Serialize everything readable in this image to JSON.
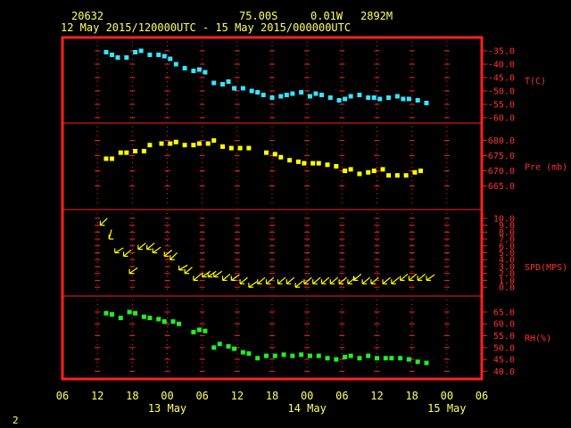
{
  "header": {
    "station_id": "20632",
    "latitude": "75.00S",
    "longitude": "0.01W",
    "altitude": "2892M",
    "time_range": "12 May 2015/120000UTC - 15 May 2015/000000UTC"
  },
  "footer": {
    "page_number": "2"
  },
  "colors": {
    "frame": "#ff2020",
    "grid": "#ff2020",
    "labels": "#ff3030",
    "header_text": "#ffff66",
    "temperature": "#33e6ff",
    "pressure": "#ffff00",
    "wind": "#ffff00",
    "humidity": "#22ee22"
  },
  "chart_data": {
    "type": "scatter",
    "x_unit": "hours since 06 UTC 12 May 2015",
    "x_ticks": [
      "06",
      "12",
      "18",
      "00",
      "06",
      "12",
      "18",
      "00",
      "06",
      "12",
      "18",
      "00",
      "06"
    ],
    "x_tick_hours": [
      0,
      6,
      12,
      18,
      24,
      30,
      36,
      42,
      48,
      54,
      60,
      66,
      72
    ],
    "date_labels": [
      {
        "label": "13 May",
        "hour": 18
      },
      {
        "label": "14 May",
        "hour": 42
      },
      {
        "label": "15 May",
        "hour": 66
      }
    ],
    "xlim": [
      0,
      72
    ],
    "panels": [
      {
        "name": "temperature",
        "axis_label": "T(C)",
        "ylim": [
          -60,
          -32
        ],
        "ticks": [
          -35.0,
          -40.0,
          -45.0,
          -50.0,
          -55.0,
          -60.0
        ],
        "tick_labels": [
          "-35.0",
          "-40.0",
          "-45.0",
          "-50.0",
          "-55.0",
          "-60.0"
        ],
        "series": [
          {
            "marker": "square",
            "x": [
              7.5,
              8.5,
              9.5,
              11,
              12.5,
              13.5,
              15,
              16.5,
              17.5,
              18.5,
              19.5,
              21,
              22.5,
              23.5,
              24.5,
              26,
              27.5,
              28.5,
              29.5,
              31,
              32.5,
              33.5,
              34.5,
              36,
              37.5,
              38.5,
              39.5,
              41,
              42.5,
              43.5,
              44.5,
              46,
              47.5,
              48.5,
              49.5,
              51,
              52.5,
              53.5,
              54.5,
              56,
              57.5,
              58.5,
              59.5,
              61,
              62.5
            ],
            "y": [
              -35.5,
              -36.5,
              -37.5,
              -37.5,
              -35.5,
              -35.0,
              -36.5,
              -36.5,
              -37.0,
              -38.0,
              -40.0,
              -41.5,
              -42.5,
              -42.0,
              -43.0,
              -47.0,
              -47.5,
              -46.5,
              -49.0,
              -49.0,
              -50.0,
              -50.5,
              -51.5,
              -52.5,
              -52.0,
              -51.5,
              -51.0,
              -50.5,
              -52.0,
              -51.0,
              -51.5,
              -52.5,
              -53.5,
              -53.0,
              -52.0,
              -51.5,
              -52.5,
              -52.5,
              -53.0,
              -52.5,
              -52.0,
              -53.0,
              -53.0,
              -53.5,
              -54.5
            ]
          }
        ]
      },
      {
        "name": "pressure",
        "axis_label": "Pre (mb)",
        "ylim": [
          659,
          684
        ],
        "ticks": [
          680.0,
          675.0,
          670.0,
          665.0
        ],
        "tick_labels": [
          "680.0",
          "675.0",
          "670.0",
          "665.0"
        ],
        "series": [
          {
            "marker": "square",
            "x": [
              7.5,
              8.5,
              10,
              11,
              12.5,
              14,
              15,
              17,
              18.5,
              19.5,
              21,
              22.5,
              23.5,
              25,
              26,
              27.5,
              29,
              30.5,
              32,
              35,
              36.5,
              37.5,
              39,
              40.5,
              41.5,
              43,
              44,
              45.5,
              47,
              48.5,
              49.5,
              51,
              52.5,
              53.5,
              55,
              56,
              57.5,
              59,
              60.5,
              61.5
            ],
            "y": [
              674.0,
              674.0,
              676.0,
              676.0,
              676.5,
              676.5,
              678.5,
              679.0,
              679.0,
              679.5,
              678.5,
              678.5,
              679.0,
              679.0,
              680.0,
              678.0,
              677.5,
              677.5,
              677.5,
              676.0,
              675.5,
              674.5,
              673.5,
              673.0,
              672.5,
              672.5,
              672.5,
              672.0,
              671.5,
              670.0,
              670.5,
              669.0,
              669.5,
              670.0,
              670.5,
              668.5,
              668.5,
              668.5,
              669.5,
              670.0
            ]
          }
        ]
      },
      {
        "name": "wind_speed",
        "axis_label": "SPD(MPS)",
        "ylim": [
          -0.5,
          10.5
        ],
        "ticks": [
          10.0,
          9.0,
          8.0,
          7.0,
          6.0,
          5.0,
          4.0,
          3.0,
          2.0,
          1.0,
          0.0
        ],
        "tick_labels": [
          "10.0",
          "9.0",
          "8.0",
          "7.0",
          "6.0",
          "5.0",
          "4.0",
          "3.0",
          "2.0",
          "1.0",
          "0.0"
        ],
        "series": [
          {
            "marker": "wind-arrow",
            "x": [
              6.5,
              8,
              9,
              10.5,
              11.5,
              13,
              14.5,
              15.5,
              17.5,
              18.5,
              20,
              21,
              22.5,
              24,
              25,
              26,
              27.5,
              29,
              30.5,
              32,
              33.5,
              35,
              37,
              38.5,
              40,
              41.5,
              43,
              44.5,
              46,
              47.5,
              49,
              50,
              51.5,
              53,
              55,
              56.5,
              58,
              59.5,
              61,
              62.5
            ],
            "y": [
              9.0,
              7.0,
              5.0,
              4.5,
              2.0,
              5.5,
              5.5,
              5.0,
              4.5,
              4.0,
              2.5,
              2.0,
              1.0,
              1.5,
              1.5,
              1.5,
              1.0,
              1.0,
              0.5,
              0.0,
              0.5,
              0.5,
              0.5,
              0.5,
              0.0,
              0.5,
              0.5,
              0.5,
              0.5,
              0.5,
              0.5,
              1.0,
              0.5,
              0.5,
              0.5,
              0.5,
              1.0,
              1.0,
              1.0,
              1.0
            ],
            "direction_deg": [
              45,
              75,
              30,
              40,
              35,
              40,
              40,
              35,
              40,
              45,
              30,
              40,
              40,
              35,
              35,
              35,
              40,
              35,
              40,
              35,
              40,
              40,
              40,
              40,
              40,
              40,
              40,
              40,
              40,
              40,
              40,
              40,
              40,
              40,
              40,
              40,
              40,
              40,
              40,
              35
            ]
          }
        ]
      },
      {
        "name": "humidity",
        "axis_label": "RH(%)",
        "ylim": [
          39,
          69.5
        ],
        "ticks": [
          65.0,
          60.0,
          55.0,
          50.0,
          45.0,
          40.0
        ],
        "tick_labels": [
          "65.0",
          "60.0",
          "55.0",
          "50.0",
          "45.0",
          "40.0"
        ],
        "series": [
          {
            "marker": "square",
            "x": [
              7.5,
              8.5,
              10,
              11.5,
              12.5,
              14,
              15,
              16.5,
              17.5,
              19,
              20,
              22.5,
              23.5,
              24.5,
              26,
              27,
              28.5,
              29.5,
              31,
              32,
              33.5,
              35,
              36.5,
              38,
              39.5,
              41,
              42.5,
              44,
              45.5,
              47,
              48.5,
              49.5,
              51,
              52.5,
              54,
              55.5,
              56.5,
              58,
              59.5,
              61,
              62.5
            ],
            "y": [
              64.5,
              64.0,
              62.5,
              65.0,
              64.5,
              63.0,
              62.5,
              62.0,
              61.0,
              61.0,
              60.0,
              56.5,
              57.5,
              57.0,
              50.0,
              51.5,
              50.5,
              49.5,
              48.0,
              47.5,
              45.5,
              46.5,
              46.5,
              47.0,
              46.5,
              47.0,
              46.5,
              46.5,
              45.5,
              45.0,
              46.0,
              46.5,
              45.5,
              46.5,
              45.5,
              45.5,
              45.5,
              45.5,
              45.0,
              44.0,
              43.5
            ]
          }
        ]
      }
    ]
  }
}
